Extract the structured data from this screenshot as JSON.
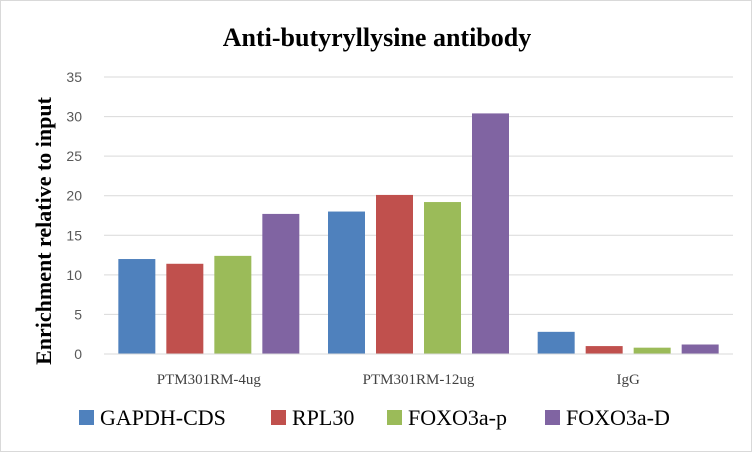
{
  "chart_data": {
    "type": "bar",
    "title": "Anti-butyryllysine  antibody",
    "xlabel": "",
    "ylabel": "Enrichment relative to input",
    "ylim": [
      0,
      35
    ],
    "yticks": [
      0,
      5,
      10,
      15,
      20,
      25,
      30,
      35
    ],
    "grid": true,
    "legend_position": "bottom",
    "categories": [
      "PTM301RM-4ug",
      "PTM301RM-12ug",
      "IgG"
    ],
    "series": [
      {
        "name": "GAPDH-CDS",
        "color": "#4f81bd",
        "values": [
          12.0,
          18.0,
          2.8
        ]
      },
      {
        "name": "RPL30",
        "color": "#c0504d",
        "values": [
          11.4,
          20.1,
          1.0
        ]
      },
      {
        "name": "FOXO3a-p",
        "color": "#9bbb59",
        "values": [
          12.4,
          19.2,
          0.8
        ]
      },
      {
        "name": "FOXO3a-D",
        "color": "#8064a2",
        "values": [
          17.7,
          30.4,
          1.2
        ]
      }
    ]
  }
}
